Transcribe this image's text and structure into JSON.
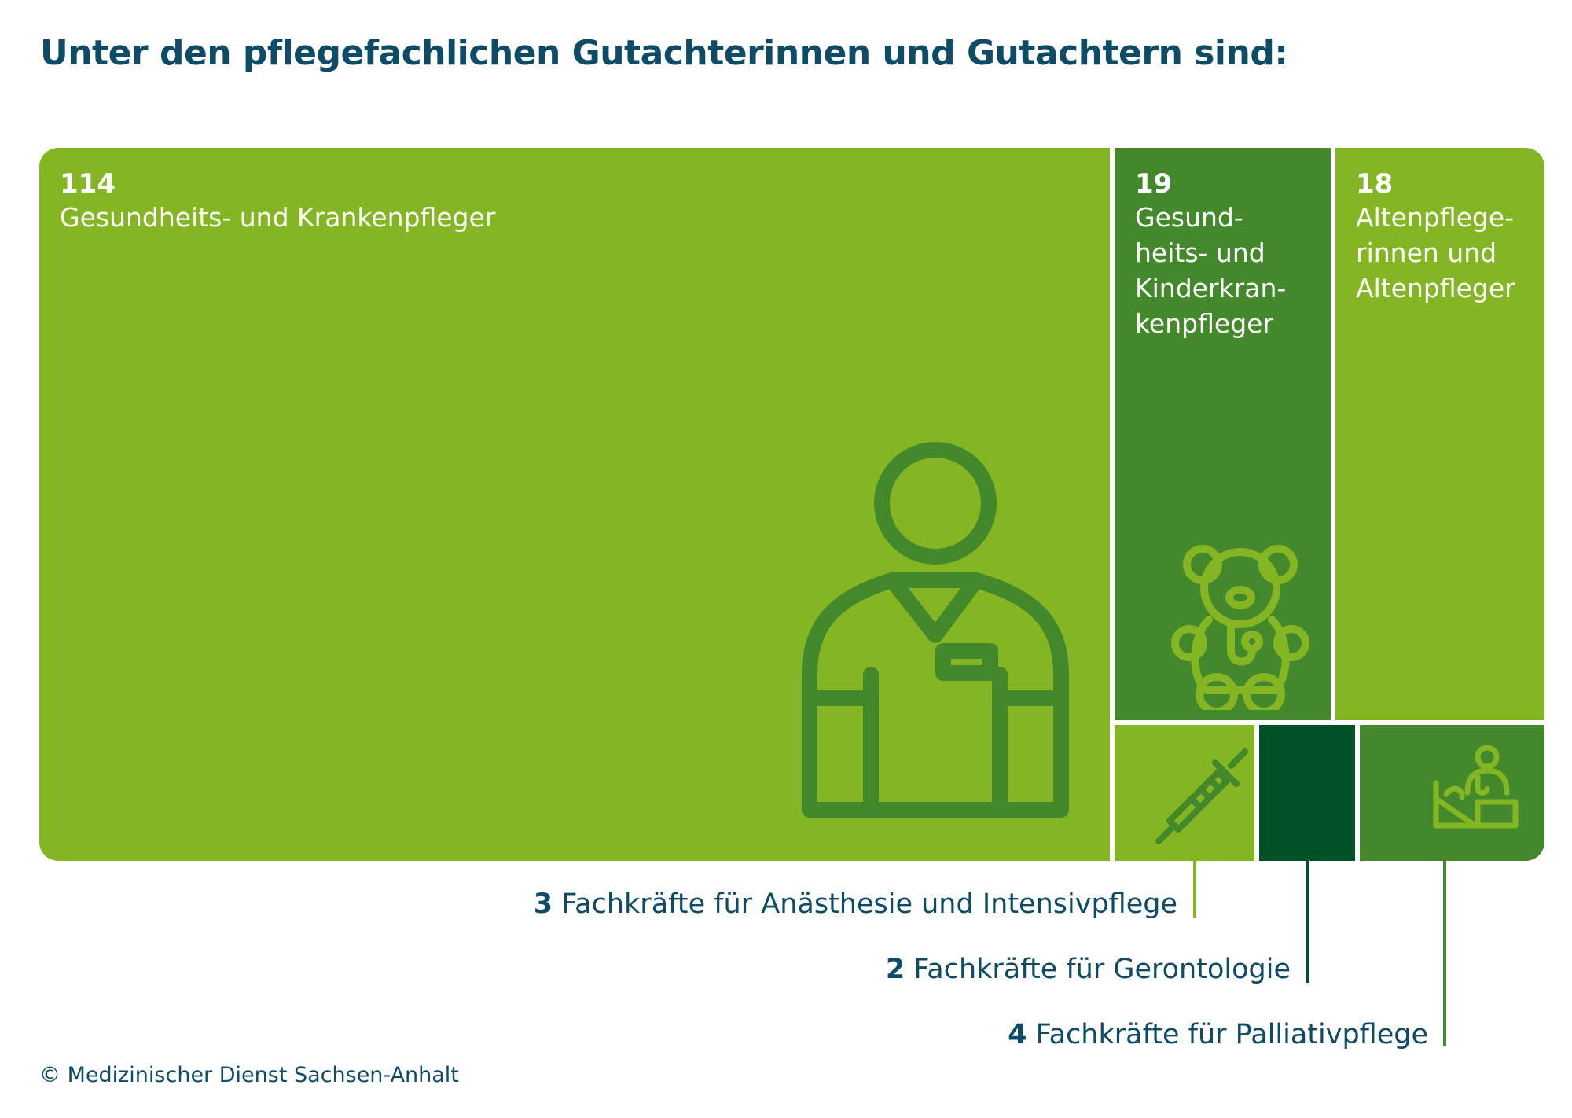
{
  "title": "Unter den pflegefachlichen Gutachterinnen und Gutachtern sind:",
  "copyright": "© Medizinischer Dienst Sachsen-Anhalt",
  "colors": {
    "light_green": "#84b623",
    "mid_green": "#43882b",
    "dark_green": "#005329",
    "icon_dark": "#43882b",
    "icon_light": "#84b623",
    "text_blue": "#0d4b67"
  },
  "chart_data": {
    "type": "treemap",
    "title": "Unter den pflegefachlichen Gutachterinnen und Gutachtern sind:",
    "unit": "",
    "categories": [
      "Gesundheits- und Krankenpfleger",
      "Gesundheits- und Kinderkrankenpfleger",
      "Altenpflegerinnen und Altenpfleger",
      "Fachkräfte für Anästhesie und Intensivpflege",
      "Fachkräfte für Gerontologie",
      "Fachkräfte für Palliativpflege"
    ],
    "values": [
      114,
      19,
      18,
      3,
      2,
      4
    ],
    "cells": [
      {
        "value": "114",
        "label": "Gesundheits- und Krankenpfleger",
        "icon": "nurse-icon",
        "color": "#84b623"
      },
      {
        "value": "19",
        "label": "Gesund-\nheits- und\nKinderkran-\nkenpfleger",
        "icon": "teddy-bear-stethoscope-icon",
        "color": "#43882b"
      },
      {
        "value": "18",
        "label": "Altenpflege-\nrinnen und\nAltenpfleger",
        "icon": "",
        "color": "#84b623"
      }
    ],
    "small_cells": [
      {
        "value": "3",
        "label": "Fachkräfte für Anästhesie und Intensivpflege",
        "icon": "syringe-icon",
        "color": "#84b623"
      },
      {
        "value": "2",
        "label": "Fachkräfte für Gerontologie",
        "icon": "",
        "color": "#005329"
      },
      {
        "value": "4",
        "label": "Fachkräfte für Palliativpflege",
        "icon": "palliative-care-icon",
        "color": "#43882b"
      }
    ]
  }
}
